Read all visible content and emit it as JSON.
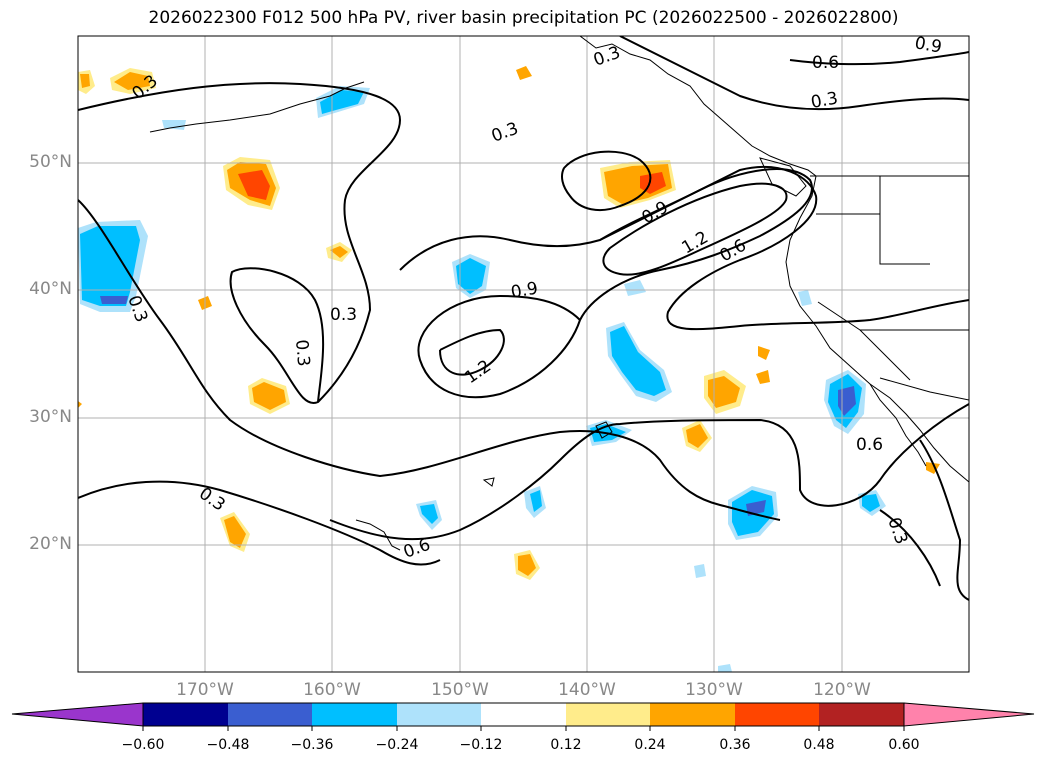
{
  "title": "2026022300 F012 500 hPa PV, river basin precipitation PC (2026022500 - 2026022800)",
  "latitude_labels": [
    "50°N",
    "40°N",
    "30°N",
    "20°N"
  ],
  "longitude_labels": [
    "170°W",
    "160°W",
    "150°W",
    "140°W",
    "130°W",
    "120°W"
  ],
  "map_extent": {
    "lon_min": -180,
    "lon_max": -110,
    "lat_min": 10,
    "lat_max": 60
  },
  "contour_labels": [
    "0.3",
    "0.6",
    "0.9",
    "1.2"
  ],
  "colorbar": {
    "tick_labels": [
      "−0.60",
      "−0.48",
      "−0.36",
      "−0.24",
      "−0.12",
      "0.12",
      "0.24",
      "0.36",
      "0.48",
      "0.60"
    ],
    "colors": [
      "#9a35cc",
      "#000090",
      "#3a5ed0",
      "#00bfff",
      "#aee2fb",
      "#ffffff",
      "#ffec8b",
      "#ffa500",
      "#ff4500",
      "#b22222",
      "#ff82ab"
    ],
    "extend": "both"
  },
  "colors": {
    "grid": "#b0b0b0",
    "contour": "#000000",
    "land_outline": "#000000",
    "axis_text": "#888888"
  }
}
